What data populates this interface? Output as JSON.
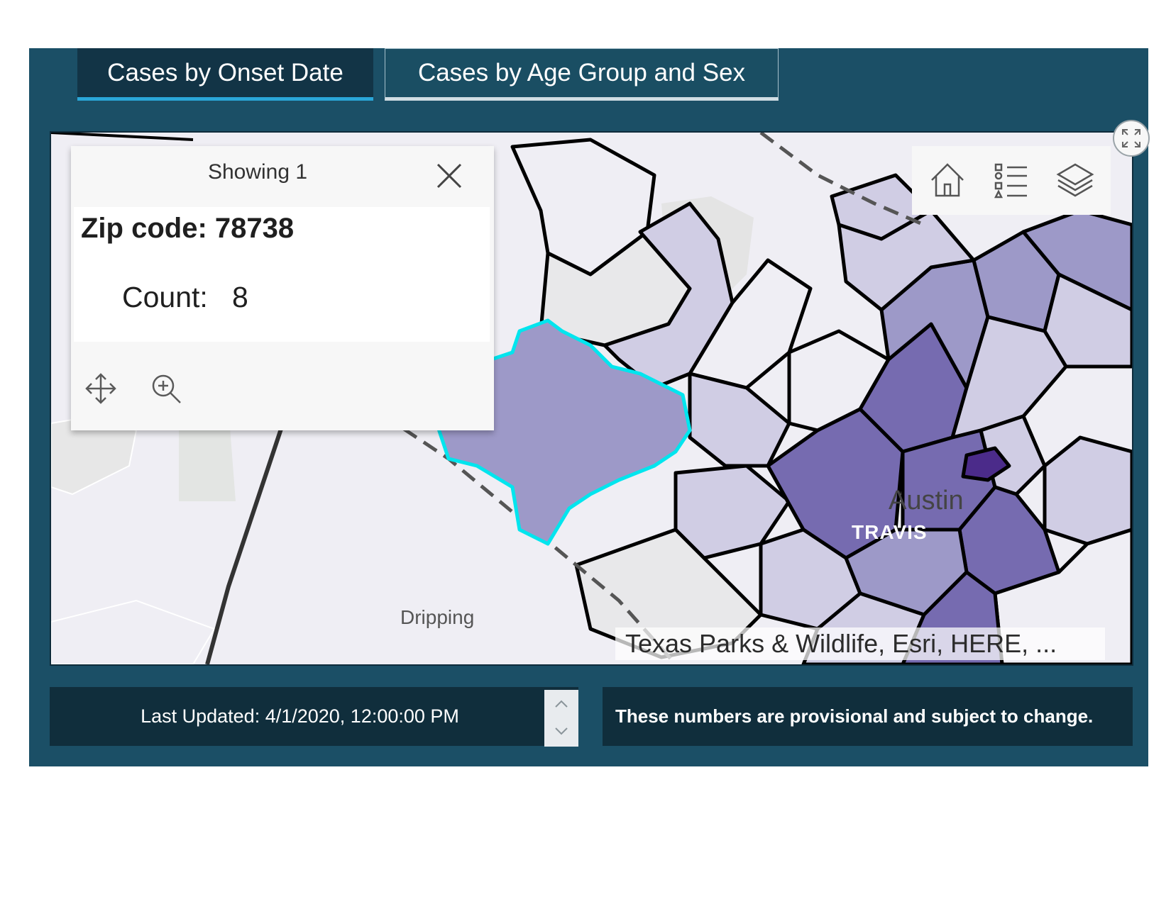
{
  "tabs": [
    {
      "label": "Cases by Onset Date",
      "active": true
    },
    {
      "label": "Cases by Age Group and Sex",
      "active": false
    }
  ],
  "popup": {
    "feature_count_label": "Showing 1",
    "title": "Zip code: 78738",
    "field_label": "Count:",
    "field_value": "8",
    "actions": [
      "move-icon",
      "zoom-to-icon"
    ]
  },
  "map": {
    "city_label": "Austin",
    "county_label": "TRAVIS",
    "town_label": "Dripping",
    "attribution": "Texas Parks & Wildlife, Esri, HERE, ...",
    "toolbar": [
      "home-icon",
      "legend-icon",
      "layers-icon"
    ],
    "highlight_color": "#00e5ee",
    "choropleth_colors": [
      "#efeef4",
      "#d0cde4",
      "#9d99c8",
      "#766bb0",
      "#4b2b8a"
    ]
  },
  "status": {
    "last_updated": "Last Updated: 4/1/2020, 12:00:00 PM",
    "disclaimer": "These numbers are provisional and subject to change."
  },
  "colors": {
    "panel": "#1b4f66",
    "panel_dark": "#102e3c",
    "tab_active_underline": "#2aa6d8"
  }
}
